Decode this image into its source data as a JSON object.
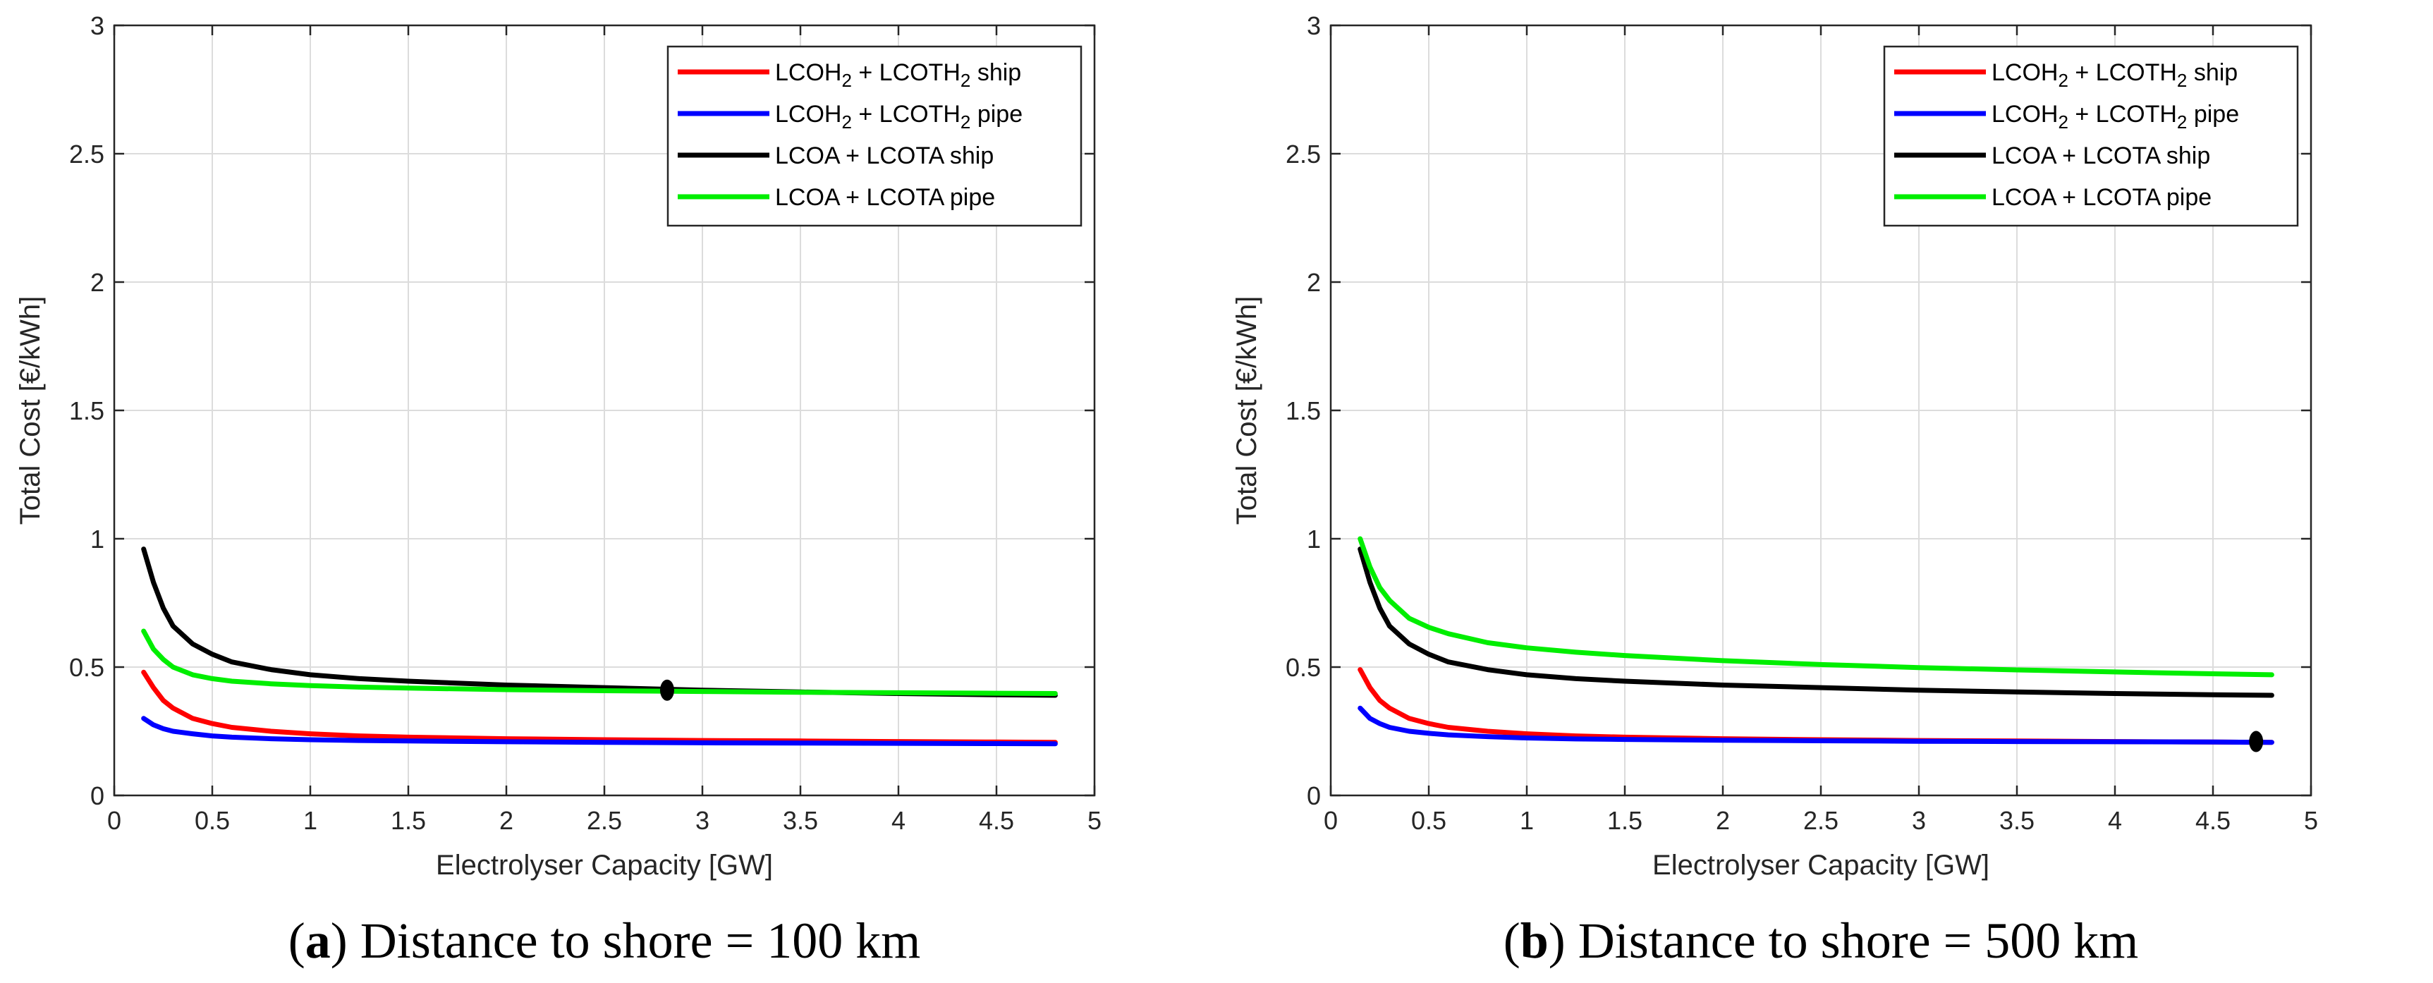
{
  "chart_data": [
    {
      "type": "line",
      "caption_letter": "a",
      "caption_text": ") Distance to shore = 100 km",
      "caption_open": "(",
      "xlabel": "Electrolyser Capacity [GW]",
      "ylabel": "Total Cost [€/kWh]",
      "xlim": [
        0,
        5
      ],
      "ylim": [
        0,
        3
      ],
      "xticks": [
        0,
        0.5,
        1,
        1.5,
        2,
        2.5,
        3,
        3.5,
        4,
        4.5,
        5
      ],
      "xtick_labels": [
        "0",
        "0.5",
        "1",
        "1.5",
        "2",
        "2.5",
        "3",
        "3.5",
        "4",
        "4.5",
        "5"
      ],
      "yticks": [
        0,
        0.5,
        1,
        1.5,
        2,
        2.5,
        3
      ],
      "ytick_labels": [
        "0",
        "0.5",
        "1",
        "1.5",
        "2",
        "2.5",
        "3"
      ],
      "grid": true,
      "legend_position": "top-right",
      "x": [
        0.15,
        0.2,
        0.25,
        0.3,
        0.4,
        0.5,
        0.6,
        0.8,
        1.0,
        1.25,
        1.5,
        2.0,
        2.5,
        3.0,
        3.5,
        4.0,
        4.5,
        4.8
      ],
      "series": [
        {
          "name": "LCOH2 + LCOTH2 ship",
          "label_pre": "LCOH",
          "label_sub": "2",
          "label_mid": " + LCOTH",
          "label_sub2": "2",
          "label_post": " ship",
          "color": "#ff0000",
          "values": [
            0.48,
            0.42,
            0.37,
            0.34,
            0.3,
            0.28,
            0.265,
            0.25,
            0.24,
            0.232,
            0.227,
            0.221,
            0.217,
            0.214,
            0.212,
            0.21,
            0.208,
            0.207
          ]
        },
        {
          "name": "LCOH2 + LCOTH2 pipe",
          "label_pre": "LCOH",
          "label_sub": "2",
          "label_mid": " + LCOTH",
          "label_sub2": "2",
          "label_post": " pipe",
          "color": "#0000ff",
          "values": [
            0.3,
            0.275,
            0.26,
            0.25,
            0.24,
            0.232,
            0.227,
            0.221,
            0.217,
            0.214,
            0.212,
            0.209,
            0.207,
            0.205,
            0.204,
            0.203,
            0.202,
            0.201
          ]
        },
        {
          "name": "LCOA + LCOTA ship",
          "label_pre": "LCOA + LCOTA ship",
          "label_sub": "",
          "label_mid": "",
          "label_sub2": "",
          "label_post": "",
          "color": "#000000",
          "values": [
            0.96,
            0.83,
            0.73,
            0.66,
            0.59,
            0.55,
            0.52,
            0.49,
            0.47,
            0.455,
            0.445,
            0.43,
            0.42,
            0.41,
            0.403,
            0.397,
            0.392,
            0.39
          ]
        },
        {
          "name": "LCOA + LCOTA pipe",
          "label_pre": "LCOA + LCOTA pipe",
          "label_sub": "",
          "label_mid": "",
          "label_sub2": "",
          "label_post": "",
          "color": "#00ee00",
          "values": [
            0.64,
            0.57,
            0.53,
            0.5,
            0.47,
            0.455,
            0.445,
            0.435,
            0.428,
            0.422,
            0.418,
            0.412,
            0.408,
            0.405,
            0.402,
            0.4,
            0.398,
            0.397
          ]
        }
      ],
      "marker": {
        "x": 2.82,
        "y": 0.41,
        "color": "#000000"
      }
    },
    {
      "type": "line",
      "caption_letter": "b",
      "caption_text": ") Distance to shore = 500 km",
      "caption_open": "(",
      "xlabel": "Electrolyser Capacity [GW]",
      "ylabel": "Total Cost [€/kWh]",
      "xlim": [
        0,
        5
      ],
      "ylim": [
        0,
        3
      ],
      "xticks": [
        0,
        0.5,
        1,
        1.5,
        2,
        2.5,
        3,
        3.5,
        4,
        4.5,
        5
      ],
      "xtick_labels": [
        "0",
        "0.5",
        "1",
        "1.5",
        "2",
        "2.5",
        "3",
        "3.5",
        "4",
        "4.5",
        "5"
      ],
      "yticks": [
        0,
        0.5,
        1,
        1.5,
        2,
        2.5,
        3
      ],
      "ytick_labels": [
        "0",
        "0.5",
        "1",
        "1.5",
        "2",
        "2.5",
        "3"
      ],
      "grid": true,
      "legend_position": "top-right",
      "x": [
        0.15,
        0.2,
        0.25,
        0.3,
        0.4,
        0.5,
        0.6,
        0.8,
        1.0,
        1.25,
        1.5,
        2.0,
        2.5,
        3.0,
        3.5,
        4.0,
        4.5,
        4.8
      ],
      "series": [
        {
          "name": "LCOH2 + LCOTH2 ship",
          "label_pre": "LCOH",
          "label_sub": "2",
          "label_mid": " + LCOTH",
          "label_sub2": "2",
          "label_post": " ship",
          "color": "#ff0000",
          "values": [
            0.49,
            0.42,
            0.37,
            0.34,
            0.3,
            0.28,
            0.265,
            0.25,
            0.24,
            0.232,
            0.227,
            0.221,
            0.217,
            0.214,
            0.212,
            0.21,
            0.208,
            0.207
          ]
        },
        {
          "name": "LCOH2 + LCOTH2 pipe",
          "label_pre": "LCOH",
          "label_sub": "2",
          "label_mid": " + LCOTH",
          "label_sub2": "2",
          "label_post": " pipe",
          "color": "#0000ff",
          "values": [
            0.34,
            0.3,
            0.28,
            0.265,
            0.25,
            0.242,
            0.236,
            0.229,
            0.224,
            0.22,
            0.218,
            0.215,
            0.213,
            0.211,
            0.21,
            0.209,
            0.208,
            0.207
          ]
        },
        {
          "name": "LCOA + LCOTA ship",
          "label_pre": "LCOA + LCOTA ship",
          "label_sub": "",
          "label_mid": "",
          "label_sub2": "",
          "label_post": "",
          "color": "#000000",
          "values": [
            0.96,
            0.83,
            0.73,
            0.66,
            0.59,
            0.55,
            0.52,
            0.49,
            0.47,
            0.455,
            0.445,
            0.43,
            0.42,
            0.41,
            0.403,
            0.397,
            0.392,
            0.39
          ]
        },
        {
          "name": "LCOA + LCOTA pipe",
          "label_pre": "LCOA + LCOTA pipe",
          "label_sub": "",
          "label_mid": "",
          "label_sub2": "",
          "label_post": "",
          "color": "#00ee00",
          "values": [
            1.0,
            0.89,
            0.81,
            0.76,
            0.69,
            0.655,
            0.63,
            0.595,
            0.575,
            0.558,
            0.545,
            0.525,
            0.51,
            0.498,
            0.489,
            0.481,
            0.474,
            0.47
          ]
        }
      ],
      "marker": {
        "x": 4.72,
        "y": 0.21,
        "color": "#000000"
      }
    }
  ]
}
